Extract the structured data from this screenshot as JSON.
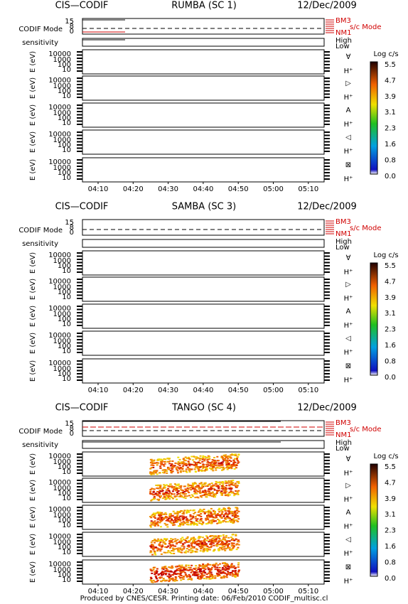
{
  "blocks": [
    {
      "left": "CIS—CODIF",
      "center": "RUMBA (SC 1)",
      "right": "12/Dec/2009"
    },
    {
      "left": "CIS—CODIF",
      "center": "SAMBA (SC 3)",
      "right": "12/Dec/2009"
    },
    {
      "left": "CIS—CODIF",
      "center": "TANGO (SC 4)",
      "right": "12/Dec/2009"
    }
  ],
  "mode_axis": {
    "label": "CODIF Mode",
    "ticks": [
      "15",
      "8",
      "0"
    ]
  },
  "mode_legend": {
    "top": "BM3",
    "bottom": "NM1",
    "title": "s/c Mode"
  },
  "sensitivity": {
    "label": "sensitivity",
    "high": "High",
    "low": "Low"
  },
  "energy_axis": {
    "label": "E (eV)",
    "ticks": [
      "10000",
      "1000",
      "100",
      "10"
    ]
  },
  "directions": [
    "∀",
    "▷",
    "A",
    "◁",
    "⊠"
  ],
  "species": "H⁺",
  "time_ticks": [
    "04:10",
    "04:20",
    "04:30",
    "04:40",
    "04:50",
    "05:00",
    "05:10"
  ],
  "colorbar": {
    "title": "Log c/s",
    "ticks": [
      "5.5",
      "4.7",
      "3.9",
      "3.1",
      "2.3",
      "1.6",
      "0.8",
      "0.0"
    ]
  },
  "footer": "Produced by CNES/CESR.   Printing date: 06/Feb/2010    CODIF_multisc.cl"
}
